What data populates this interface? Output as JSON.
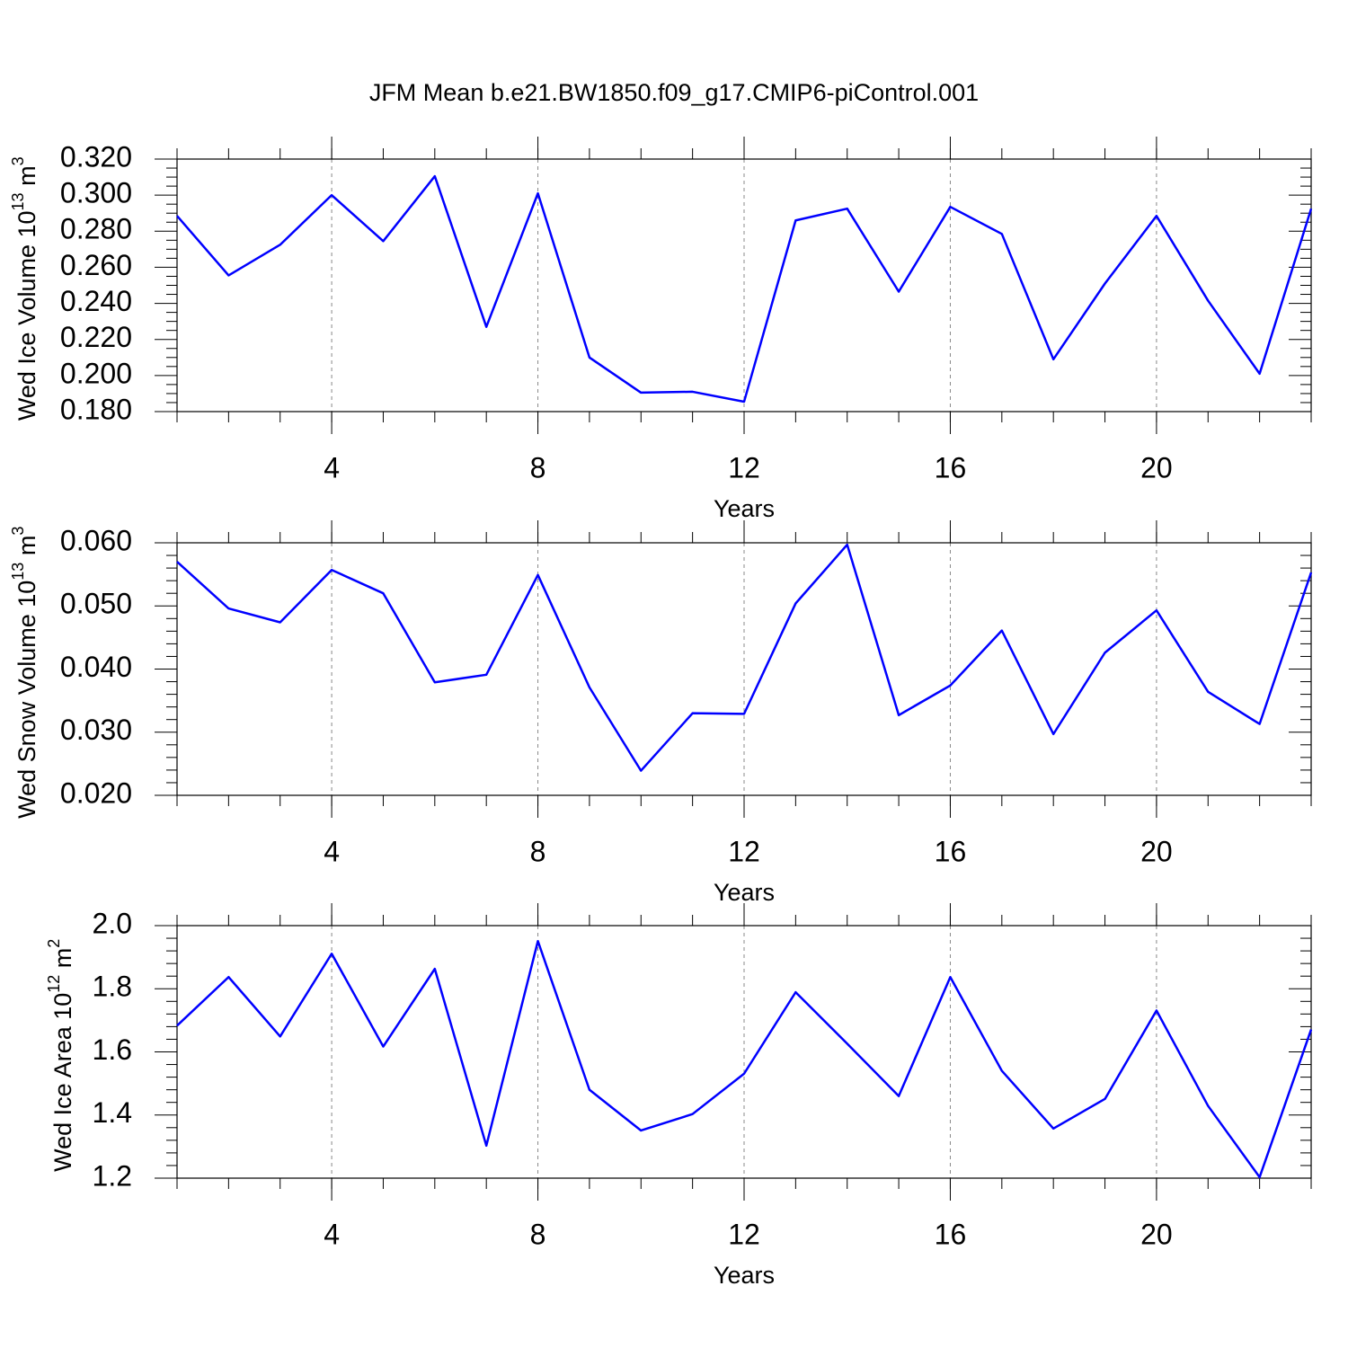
{
  "title": "JFM Mean b.e21.BW1850.f09_g17.CMIP6-piControl.001",
  "chart_data": [
    {
      "type": "line",
      "xlabel": "Years",
      "ylabel": [
        {
          "text": "Wed Ice Volume 10"
        },
        {
          "sup": "13"
        },
        {
          "text": "m"
        },
        {
          "sup": "3"
        }
      ],
      "x": [
        1,
        2,
        3,
        4,
        5,
        6,
        7,
        8,
        9,
        10,
        11,
        12,
        13,
        14,
        15,
        16,
        17,
        18,
        19,
        20,
        21,
        22,
        23
      ],
      "values": [
        0.2885,
        0.2555,
        0.2725,
        0.3,
        0.2745,
        0.3105,
        0.227,
        0.301,
        0.21,
        0.1905,
        0.191,
        0.1855,
        0.286,
        0.2925,
        0.2465,
        0.2935,
        0.2785,
        0.209,
        0.251,
        0.2885,
        0.2415,
        0.201,
        0.2925
      ],
      "color": "#0000ff",
      "xlim": [
        1,
        23
      ],
      "xticks": [
        4,
        8,
        12,
        16,
        20
      ],
      "x_minor_divisions": 4,
      "ylim": [
        0.18,
        0.32
      ],
      "yticks": [
        {
          "value": 0.18,
          "label": "0.180"
        },
        {
          "value": 0.2,
          "label": "0.200"
        },
        {
          "value": 0.22,
          "label": "0.220"
        },
        {
          "value": 0.24,
          "label": "0.240"
        },
        {
          "value": 0.26,
          "label": "0.260"
        },
        {
          "value": 0.28,
          "label": "0.280"
        },
        {
          "value": 0.3,
          "label": "0.300"
        },
        {
          "value": 0.32,
          "label": "0.320"
        }
      ],
      "y_minor_divisions": 4,
      "grid": "x"
    },
    {
      "type": "line",
      "xlabel": "Years",
      "ylabel": [
        {
          "text": "Wed Snow Volume 10"
        },
        {
          "sup": "13"
        },
        {
          "text": "m"
        },
        {
          "sup": "3"
        }
      ],
      "x": [
        1,
        2,
        3,
        4,
        5,
        6,
        7,
        8,
        9,
        10,
        11,
        12,
        13,
        14,
        15,
        16,
        17,
        18,
        19,
        20,
        21,
        22,
        23
      ],
      "values": [
        0.057,
        0.0496,
        0.0474,
        0.0557,
        0.052,
        0.0379,
        0.0391,
        0.0549,
        0.0371,
        0.0239,
        0.033,
        0.0329,
        0.0504,
        0.0597,
        0.0327,
        0.0374,
        0.0461,
        0.0297,
        0.0426,
        0.0493,
        0.0364,
        0.0313,
        0.0553
      ],
      "color": "#0000ff",
      "xlim": [
        1,
        23
      ],
      "xticks": [
        4,
        8,
        12,
        16,
        20
      ],
      "x_minor_divisions": 4,
      "ylim": [
        0.02,
        0.06
      ],
      "yticks": [
        {
          "value": 0.02,
          "label": "0.020"
        },
        {
          "value": 0.03,
          "label": "0.030"
        },
        {
          "value": 0.04,
          "label": "0.040"
        },
        {
          "value": 0.05,
          "label": "0.050"
        },
        {
          "value": 0.06,
          "label": "0.060"
        }
      ],
      "y_minor_divisions": 5,
      "grid": "x"
    },
    {
      "type": "line",
      "xlabel": "Years",
      "ylabel": [
        {
          "text": "Wed Ice Area 10"
        },
        {
          "sup": "12"
        },
        {
          "text": "m"
        },
        {
          "sup": "2"
        }
      ],
      "x": [
        1,
        2,
        3,
        4,
        5,
        6,
        7,
        8,
        9,
        10,
        11,
        12,
        13,
        14,
        15,
        16,
        17,
        18,
        19,
        20,
        21,
        22,
        23
      ],
      "values": [
        1.683,
        1.837,
        1.649,
        1.911,
        1.617,
        1.863,
        1.303,
        1.951,
        1.48,
        1.351,
        1.403,
        1.531,
        1.789,
        1.626,
        1.46,
        1.837,
        1.54,
        1.357,
        1.451,
        1.731,
        1.429,
        1.203,
        1.671
      ],
      "color": "#0000ff",
      "xlim": [
        1,
        23
      ],
      "xticks": [
        4,
        8,
        12,
        16,
        20
      ],
      "x_minor_divisions": 4,
      "ylim": [
        1.2,
        2
      ],
      "yticks": [
        1.2,
        1.4,
        1.6,
        1.8,
        {
          "value": 2,
          "label": "2.0"
        }
      ],
      "y_minor_divisions": 5,
      "grid": "x"
    }
  ]
}
